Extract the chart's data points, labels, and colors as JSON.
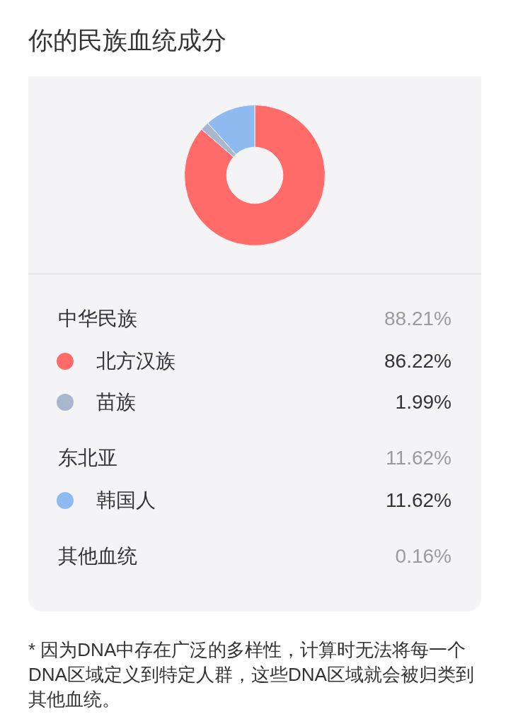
{
  "chart_data": {
    "type": "donut",
    "title": "你的民族血统成分",
    "categories": [
      "北方汉族",
      "苗族",
      "韩国人"
    ],
    "values": [
      86.22,
      1.99,
      11.62
    ],
    "colors": [
      "#ff6b68",
      "#a9b7ce",
      "#8fbaf0"
    ],
    "value_labels": [
      "86.22%",
      "1.99%",
      "11.62%"
    ],
    "legend": "bottom",
    "annotations": [
      "中华民族",
      "88.21%",
      "东北亚",
      "11.62%",
      "其他血统",
      "0.16%",
      "* 因为DNA中存在广泛的多样性，计算时无法将每一个DNA区域定义到特定人群，这些DNA区域就会被归类到其他血统。"
    ]
  }
}
